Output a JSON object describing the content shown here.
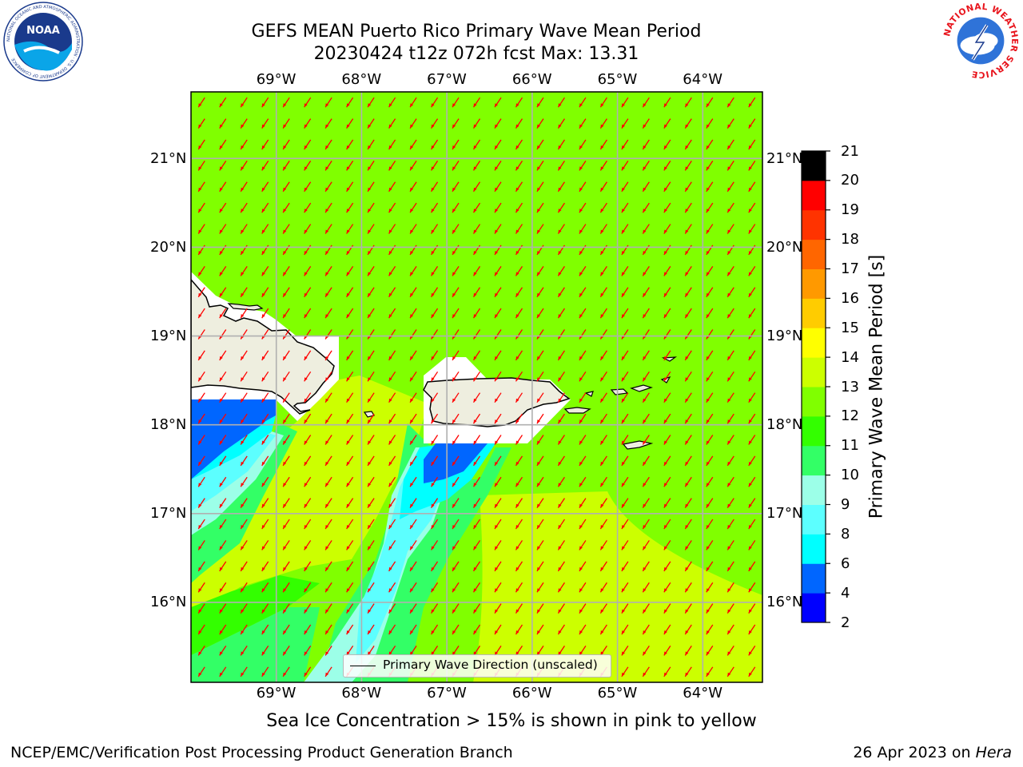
{
  "title": {
    "line1": "GEFS MEAN Puerto Rico Primary Wave Mean Period",
    "line2": "20230424 t12z 072h fcst   Max: 13.31"
  },
  "logos": {
    "noaa_text": "NOAA",
    "noaa_ring": "NATIONAL OCEANIC AND ATMOSPHERIC ADMINISTRATION · U.S. DEPARTMENT OF COMMERCE",
    "nws_ring": "NATIONAL WEATHER SERVICE"
  },
  "axes": {
    "lon_labels": [
      "69°W",
      "68°W",
      "67°W",
      "66°W",
      "65°W",
      "64°W"
    ],
    "lat_labels": [
      "21°N",
      "20°N",
      "19°N",
      "18°N",
      "17°N",
      "16°N"
    ]
  },
  "legend": {
    "label": "Primary Wave Direction (unscaled)"
  },
  "colorbar": {
    "label": "Primary Wave Mean Period [s]",
    "ticks": [
      "21",
      "20",
      "19",
      "18",
      "17",
      "16",
      "15",
      "14",
      "13",
      "12",
      "11",
      "10",
      "9",
      "8",
      "6",
      "4",
      "2"
    ],
    "bounds": [
      2,
      4,
      6,
      8,
      9,
      10,
      11,
      12,
      13,
      14,
      15,
      16,
      17,
      18,
      19,
      20,
      21
    ],
    "colors": [
      "#0000ff",
      "#0066ff",
      "#00ffff",
      "#5cffff",
      "#9cffe8",
      "#33ff66",
      "#33ff00",
      "#80ff00",
      "#ccff00",
      "#ffff00",
      "#ffcc00",
      "#ff9900",
      "#ff6600",
      "#ff3300",
      "#ff0000"
    ]
  },
  "map": {
    "lon_range": [
      -70.0,
      -63.3
    ],
    "lat_range": [
      15.1,
      21.75
    ],
    "vector_color": "#ff0000",
    "land_color": "#eeeedf"
  },
  "caption": "Sea Ice Concentration > 15% is shown in pink to yellow",
  "footer": {
    "left": "NCEP/EMC/Verification Post Processing Product Generation Branch",
    "date": "26 Apr 2023 on ",
    "host": "Hera"
  }
}
